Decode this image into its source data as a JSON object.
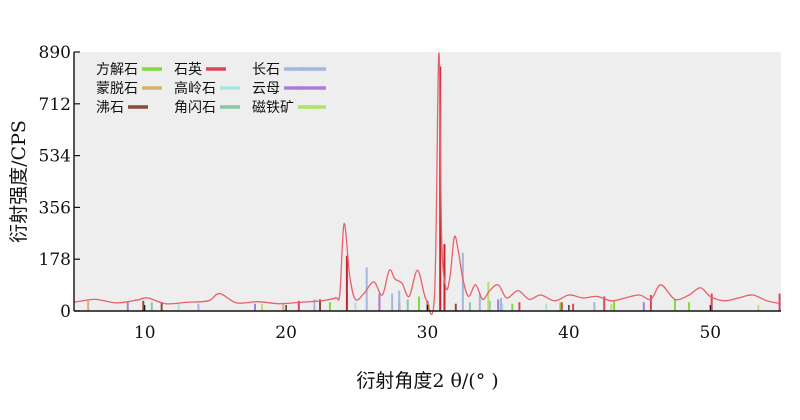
{
  "chart_data": {
    "type": "line",
    "title": "",
    "xlabel": "衍射角度2 θ/(° )",
    "ylabel": "衍射强度/CPS",
    "xlim": [
      5,
      55
    ],
    "ylim": [
      0,
      890
    ],
    "xticks": [
      10,
      20,
      30,
      40,
      50
    ],
    "yticks": [
      0,
      178,
      356,
      534,
      712,
      890
    ],
    "grid": false,
    "legend_position": "top-left",
    "colors": {
      "plot_background": "#eeeeee",
      "pattern_line": "#e8606a",
      "peak_line": "#c1272d"
    },
    "legend": [
      {
        "label": "方解石",
        "color": "#7ddc3a"
      },
      {
        "label": "蒙脱石",
        "color": "#d9b36a"
      },
      {
        "label": "沸石",
        "color": "#8a4a3c"
      },
      {
        "label": "石英",
        "color": "#d8475c"
      },
      {
        "label": "高岭石",
        "color": "#a9e3df"
      },
      {
        "label": "角闪石",
        "color": "#88c9a4"
      },
      {
        "label": "长石",
        "color": "#a2b7e0"
      },
      {
        "label": "云母",
        "color": "#a77ddc"
      },
      {
        "label": "磁铁矿",
        "color": "#b5e06a"
      }
    ],
    "series": [
      {
        "name": "",
        "x": [
          5,
          6.5,
          8,
          9.5,
          10.2,
          11.5,
          13,
          14.5,
          15.3,
          16.5,
          18,
          19.5,
          21,
          22.5,
          23.5,
          23.8,
          24.1,
          24.5,
          24.9,
          25.5,
          26.2,
          26.8,
          27.3,
          27.7,
          28.2,
          28.7,
          29.3,
          29.9,
          30.5,
          30.8,
          31.0,
          31.3,
          31.6,
          31.9,
          32.2,
          32.5,
          32.9,
          33.4,
          33.9,
          34.4,
          35.0,
          35.6,
          36.4,
          37.2,
          38.0,
          39.0,
          40.0,
          41.0,
          42.0,
          43.0,
          44.0,
          45.0,
          45.8,
          46.5,
          47.5,
          48.5,
          49.3,
          50.0,
          51.0,
          52.0,
          53.0,
          54.0,
          55.0
        ],
        "y": [
          30,
          40,
          28,
          38,
          45,
          25,
          30,
          35,
          60,
          28,
          32,
          25,
          30,
          35,
          45,
          60,
          300,
          120,
          40,
          60,
          100,
          55,
          140,
          110,
          95,
          50,
          140,
          40,
          60,
          885,
          250,
          80,
          120,
          255,
          200,
          110,
          50,
          90,
          40,
          70,
          90,
          45,
          70,
          40,
          55,
          35,
          55,
          45,
          50,
          35,
          45,
          55,
          40,
          90,
          40,
          55,
          80,
          50,
          35,
          45,
          55,
          35,
          25
        ]
      }
    ],
    "peak_lines": [
      {
        "mineral": "方解石",
        "positions": [
          23.1,
          29.4,
          36.0,
          39.4,
          43.2,
          47.5,
          48.5
        ],
        "heights": [
          30,
          50,
          25,
          30,
          35,
          40,
          30
        ]
      },
      {
        "mineral": "蒙脱石",
        "positions": [
          6.0,
          19.8,
          35.0
        ],
        "heights": [
          35,
          25,
          30
        ]
      },
      {
        "mineral": "沸石",
        "positions": [
          9.9,
          11.2,
          22.4,
          28.0,
          30.0,
          32.0
        ],
        "heights": [
          35,
          30,
          40,
          30,
          35,
          25
        ]
      },
      {
        "mineral": "石英",
        "positions": [
          20.9,
          26.6,
          36.5,
          39.5,
          40.3,
          42.5,
          45.8,
          50.1,
          54.9
        ],
        "heights": [
          35,
          45,
          30,
          30,
          25,
          50,
          55,
          60,
          60
        ]
      },
      {
        "mineral": "高岭石",
        "positions": [
          12.4,
          24.9,
          35.3,
          38.4
        ],
        "heights": [
          25,
          30,
          25,
          25
        ]
      },
      {
        "mineral": "角闪石",
        "positions": [
          10.5,
          28.6,
          33.0,
          34.4
        ],
        "heights": [
          30,
          40,
          30,
          35
        ]
      },
      {
        "mineral": "长石",
        "positions": [
          13.8,
          22.0,
          25.7,
          27.5,
          28.0,
          30.9,
          32.5,
          33.7,
          35.2,
          41.8
        ],
        "heights": [
          25,
          40,
          150,
          60,
          70,
          110,
          200,
          60,
          45,
          30
        ]
      },
      {
        "mineral": "云母",
        "positions": [
          8.8,
          17.8,
          26.6,
          35.0,
          45.3
        ],
        "heights": [
          30,
          25,
          60,
          40,
          30
        ]
      },
      {
        "mineral": "磁铁矿",
        "positions": [
          18.3,
          30.1,
          34.3,
          43.0,
          53.4
        ],
        "heights": [
          25,
          25,
          100,
          25,
          20
        ]
      },
      {
        "mineral": "",
        "positions": [
          24.3,
          30.9,
          31.2
        ],
        "heights": [
          190,
          840,
          230
        ]
      }
    ]
  }
}
